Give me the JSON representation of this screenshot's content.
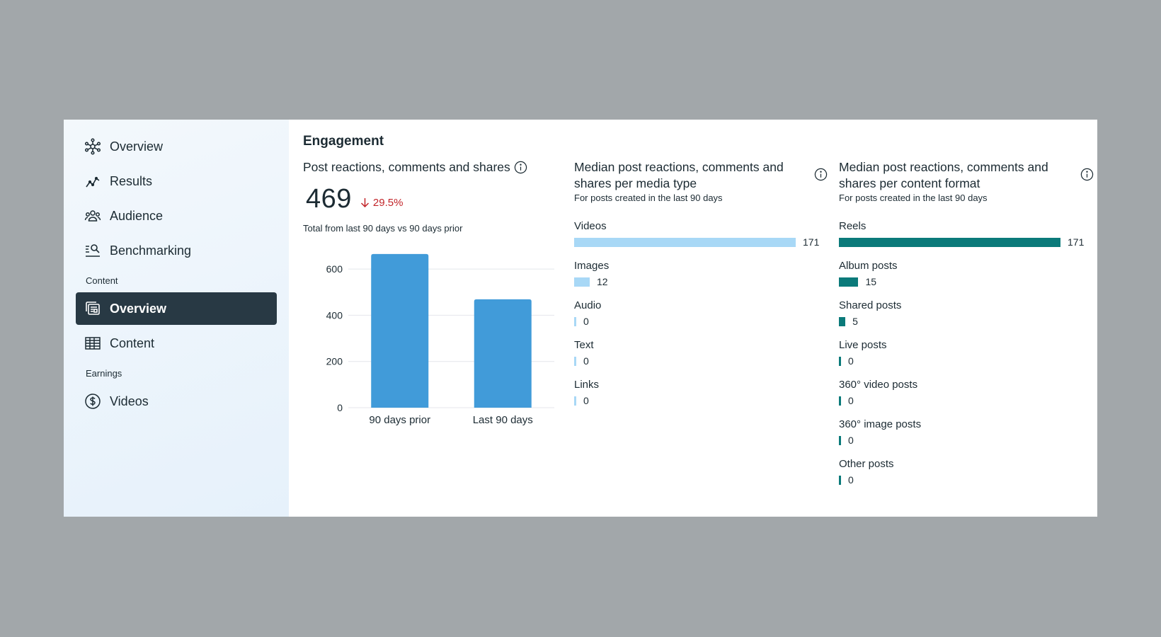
{
  "sidebar": {
    "items": [
      {
        "label": "Overview",
        "icon": "network-icon"
      },
      {
        "label": "Results",
        "icon": "trend-icon"
      },
      {
        "label": "Audience",
        "icon": "people-icon"
      },
      {
        "label": "Benchmarking",
        "icon": "benchmark-icon"
      }
    ],
    "content_section": "Content",
    "content_items": [
      {
        "label": "Overview",
        "icon": "cards-icon",
        "active": true
      },
      {
        "label": "Content",
        "icon": "table-icon"
      }
    ],
    "earnings_section": "Earnings",
    "earnings_items": [
      {
        "label": "Videos",
        "icon": "dollar-icon"
      }
    ]
  },
  "main": {
    "title": "Engagement",
    "panel1": {
      "title": "Post reactions, comments and shares",
      "value": "469",
      "change": "29.5%",
      "note": "Total from last 90 days vs 90 days prior"
    },
    "panel2": {
      "title": "Median post reactions, comments and shares per media type",
      "subtitle": "For posts created in the last 90 days",
      "items": [
        {
          "label": "Videos",
          "value": 171
        },
        {
          "label": "Images",
          "value": 12
        },
        {
          "label": "Audio",
          "value": 0
        },
        {
          "label": "Text",
          "value": 0
        },
        {
          "label": "Links",
          "value": 0
        }
      ]
    },
    "panel3": {
      "title": "Median post reactions, comments and shares per content format",
      "subtitle": "For posts created in the last 90 days",
      "items": [
        {
          "label": "Reels",
          "value": 171
        },
        {
          "label": "Album posts",
          "value": 15
        },
        {
          "label": "Shared posts",
          "value": 5
        },
        {
          "label": "Live posts",
          "value": 0
        },
        {
          "label": "360° video posts",
          "value": 0
        },
        {
          "label": "360° image posts",
          "value": 0
        },
        {
          "label": "Other posts",
          "value": 0
        }
      ]
    }
  },
  "colors": {
    "bar_blue": "#419bd9",
    "bar_light": "#a8d8f6",
    "bar_teal": "#0b7a7a",
    "negative": "#c2252a",
    "active_nav": "#283944"
  },
  "chart_data": {
    "type": "bar",
    "categories": [
      "90 days prior",
      "Last 90 days"
    ],
    "values": [
      665,
      469
    ],
    "title": "Post reactions, comments and shares",
    "xlabel": "",
    "ylabel": "",
    "yticks": [
      0,
      200,
      400,
      600
    ],
    "ylim": [
      0,
      680
    ]
  }
}
